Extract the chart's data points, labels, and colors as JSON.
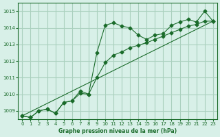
{
  "title": "Graphe pression niveau de la mer (hPa)",
  "background_color": "#d8f0e8",
  "grid_color": "#aad0be",
  "line_color": "#1a6b2a",
  "xlim": [
    -0.5,
    23.5
  ],
  "ylim": [
    1008.5,
    1015.5
  ],
  "yticks": [
    1009,
    1010,
    1011,
    1012,
    1013,
    1014,
    1015
  ],
  "xticks": [
    0,
    1,
    2,
    3,
    4,
    5,
    6,
    7,
    8,
    9,
    10,
    11,
    12,
    13,
    14,
    15,
    16,
    17,
    18,
    19,
    20,
    21,
    22,
    23
  ],
  "series1": {
    "x": [
      0,
      1,
      2,
      3,
      4,
      5,
      6,
      7,
      8,
      9,
      10,
      11,
      12,
      13,
      14,
      15,
      16,
      17,
      18,
      19,
      20,
      21,
      22,
      23
    ],
    "y": [
      1008.7,
      1008.6,
      1009.0,
      1009.1,
      1008.85,
      1009.5,
      1009.6,
      1010.05,
      1010.0,
      1012.5,
      1014.15,
      1014.3,
      1014.1,
      1014.0,
      1013.55,
      1013.3,
      1013.55,
      1013.65,
      1014.15,
      1014.35,
      1014.5,
      1014.35,
      1015.0,
      1014.4
    ]
  },
  "series2": {
    "x": [
      0,
      1,
      2,
      3,
      4,
      5,
      6,
      7,
      8,
      9,
      10,
      11,
      12,
      13,
      14,
      15,
      16,
      17,
      18,
      19,
      20,
      21,
      22,
      23
    ],
    "y": [
      1008.7,
      1008.6,
      1009.0,
      1009.1,
      1008.85,
      1009.5,
      1009.6,
      1010.2,
      1010.0,
      1011.0,
      1011.9,
      1012.35,
      1012.55,
      1012.8,
      1012.95,
      1013.1,
      1013.3,
      1013.5,
      1013.7,
      1013.9,
      1014.1,
      1014.2,
      1014.4,
      1014.4
    ]
  },
  "series3": {
    "x": [
      0,
      23
    ],
    "y": [
      1008.7,
      1014.4
    ]
  },
  "lw": 0.8,
  "markersize": 2.5,
  "title_fontsize": 5.5,
  "tick_labelsize": 5
}
